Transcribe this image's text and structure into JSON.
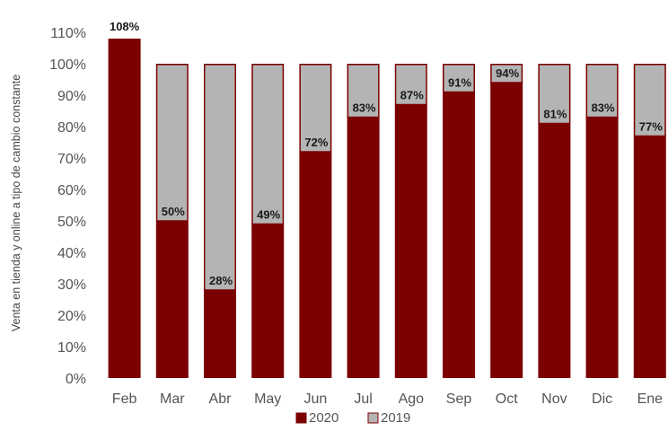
{
  "chart_data": {
    "type": "bar",
    "stacked": true,
    "categories": [
      "Feb",
      "Mar",
      "Abr",
      "May",
      "Jun",
      "Jul",
      "Ago",
      "Sep",
      "Oct",
      "Nov",
      "Dic",
      "Ene"
    ],
    "series": [
      {
        "name": "2020",
        "color": "#7b0000",
        "values": [
          108,
          50,
          28,
          49,
          72,
          83,
          87,
          91,
          94,
          81,
          83,
          77
        ]
      },
      {
        "name": "2019",
        "color": "#b4b4b4",
        "values": [
          0,
          50,
          72,
          51,
          28,
          17,
          13,
          9,
          6,
          19,
          17,
          23
        ]
      }
    ],
    "data_labels": [
      "108%",
      "50%",
      "28%",
      "49%",
      "72%",
      "83%",
      "87%",
      "91%",
      "94%",
      "81%",
      "83%",
      "77%"
    ],
    "title": "",
    "xlabel": "",
    "ylabel": "Venta en tienda y online a tipo de cambio constante",
    "ylim": [
      0,
      110
    ],
    "y_ticks": [
      "0%",
      "10%",
      "20%",
      "30%",
      "40%",
      "50%",
      "60%",
      "70%",
      "80%",
      "90%",
      "100%",
      "110%"
    ],
    "grid": false,
    "legend_position": "bottom"
  }
}
